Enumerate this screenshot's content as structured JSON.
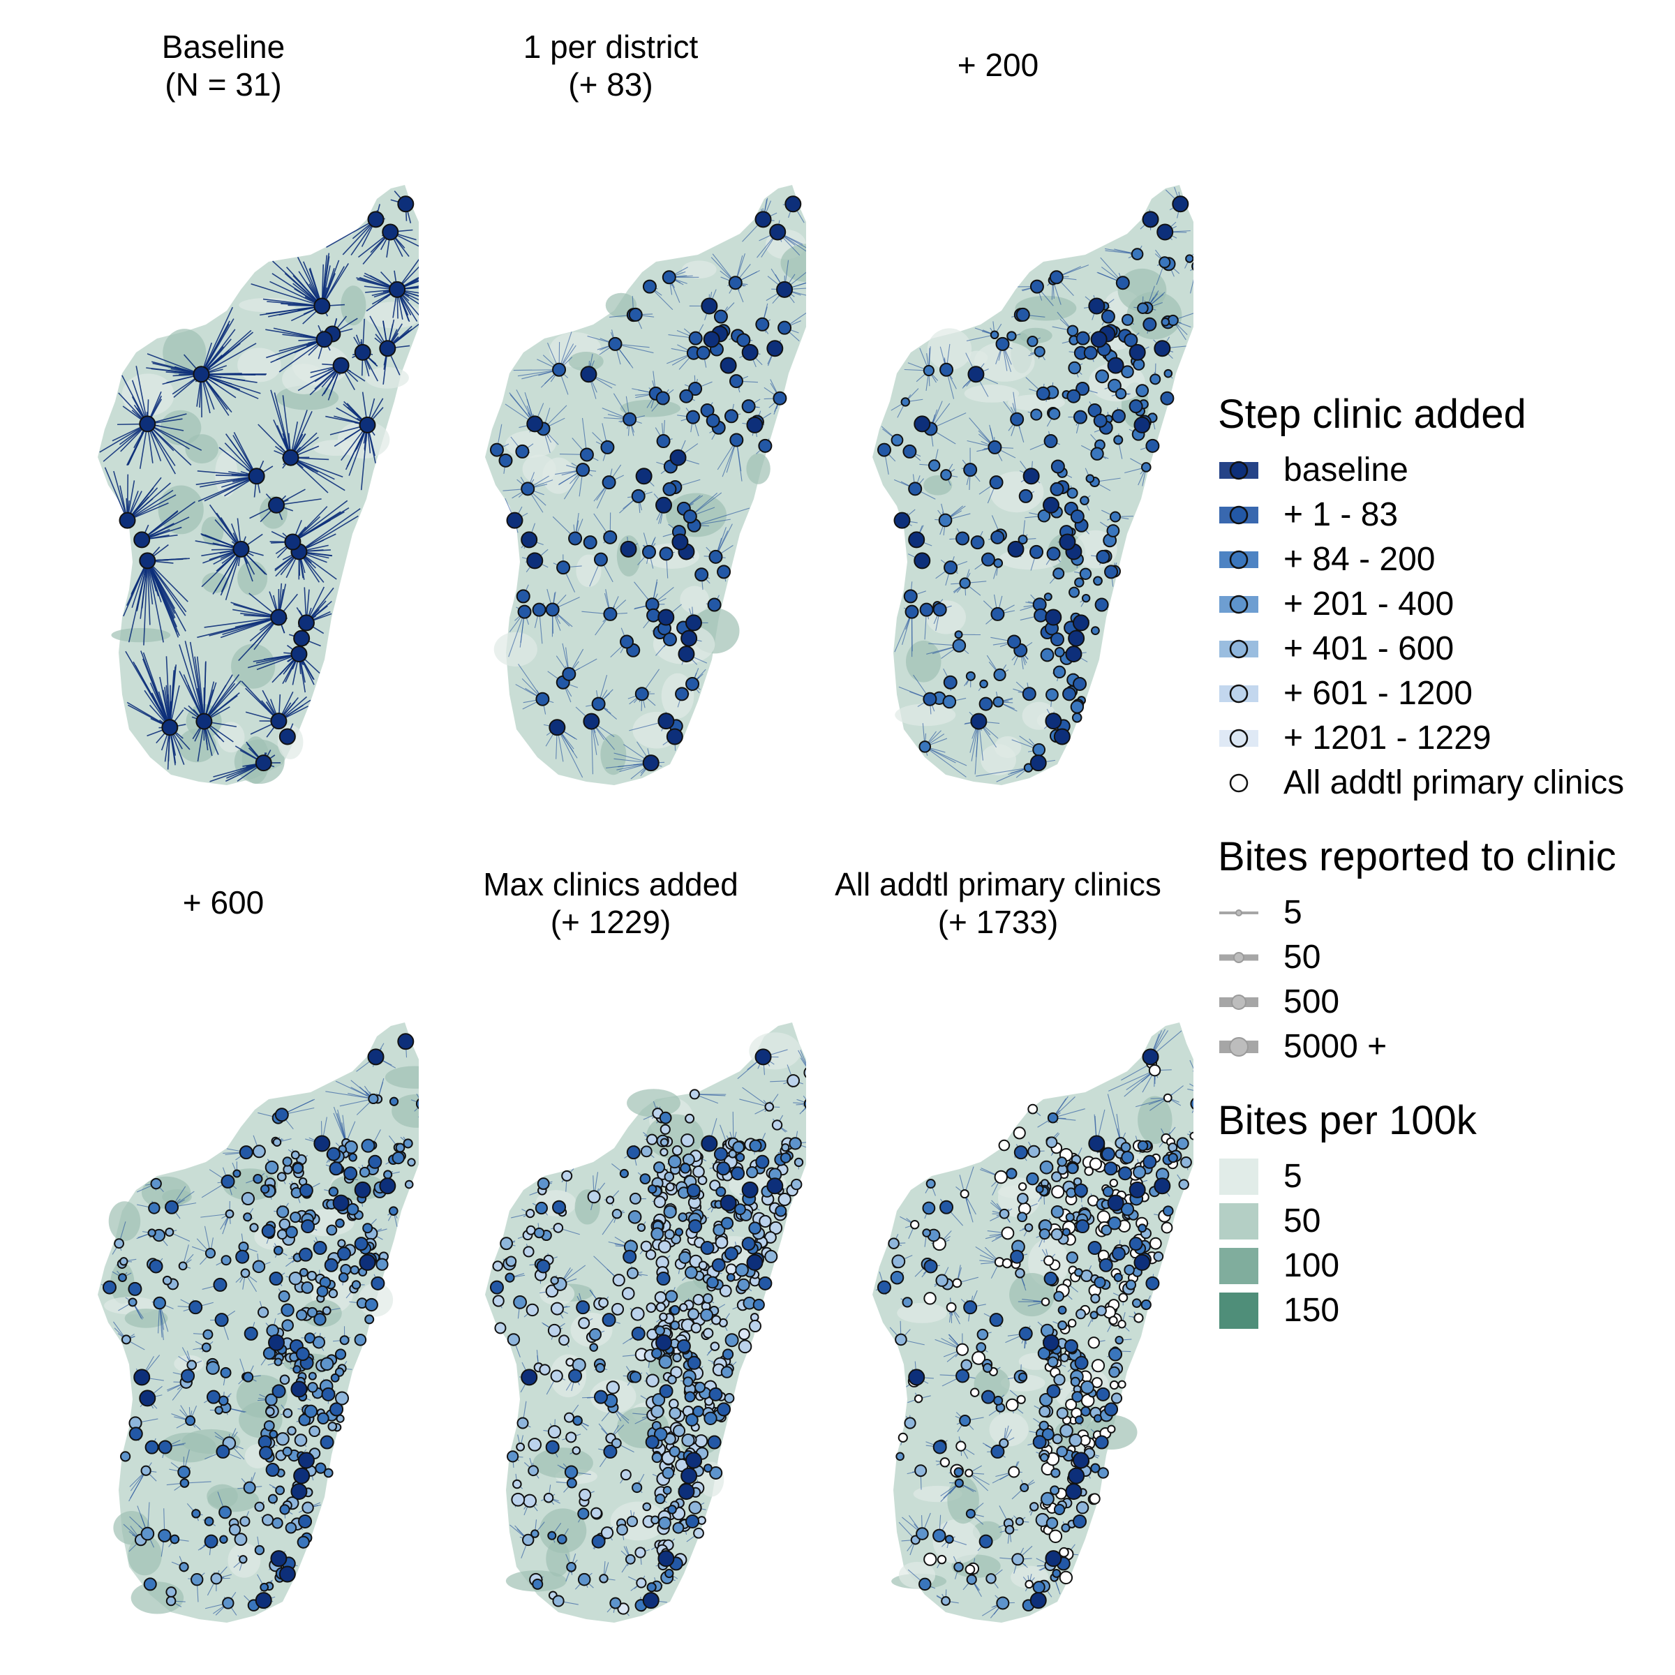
{
  "panels": [
    {
      "title": "Baseline\n(N = 31)",
      "stage": 0
    },
    {
      "title": "1 per district\n(+ 83)",
      "stage": 1
    },
    {
      "title": "+ 200",
      "stage": 2
    },
    {
      "title": "+ 600",
      "stage": 3
    },
    {
      "title": "Max clinics added\n(+ 1229)",
      "stage": 4
    },
    {
      "title": "All addtl primary clinics\n(+ 1733)",
      "stage": 5
    }
  ],
  "legend": {
    "step": {
      "title": "Step clinic added",
      "items": [
        {
          "label": "baseline",
          "color": "#0d2f7a"
        },
        {
          "label": "+ 1 - 83",
          "color": "#2358a6"
        },
        {
          "label": "+ 84 - 200",
          "color": "#3a76bd"
        },
        {
          "label": "+ 201 - 400",
          "color": "#5e94cc"
        },
        {
          "label": "+ 401 - 600",
          "color": "#8fb6dc"
        },
        {
          "label": "+ 601 - 1200",
          "color": "#bcd3ec"
        },
        {
          "label": "+ 1201 - 1229",
          "color": "#dbe7f4"
        },
        {
          "label": "All addtl primary clinics",
          "color": "#ffffff"
        }
      ]
    },
    "bites": {
      "title": "Bites reported to clinic",
      "items": [
        {
          "label": "5",
          "value": 5
        },
        {
          "label": "50",
          "value": 50
        },
        {
          "label": "500",
          "value": 500
        },
        {
          "label": "5000 +",
          "value": 5000
        }
      ]
    },
    "incidence": {
      "title": "Bites per 100k",
      "items": [
        {
          "label": "5",
          "color": "#e1ece8"
        },
        {
          "label": "50",
          "color": "#b4cfc5"
        },
        {
          "label": "100",
          "color": "#80ad9d"
        },
        {
          "label": "150",
          "color": "#4f8e79"
        }
      ]
    }
  },
  "colors": {
    "catchment_line": "#1f4e9c",
    "baseline_line": "#0d2f7a",
    "map_fill": "#c9ddd5",
    "map_fill_dark": "#9fc1b3",
    "clinic_stroke": "#111111"
  }
}
